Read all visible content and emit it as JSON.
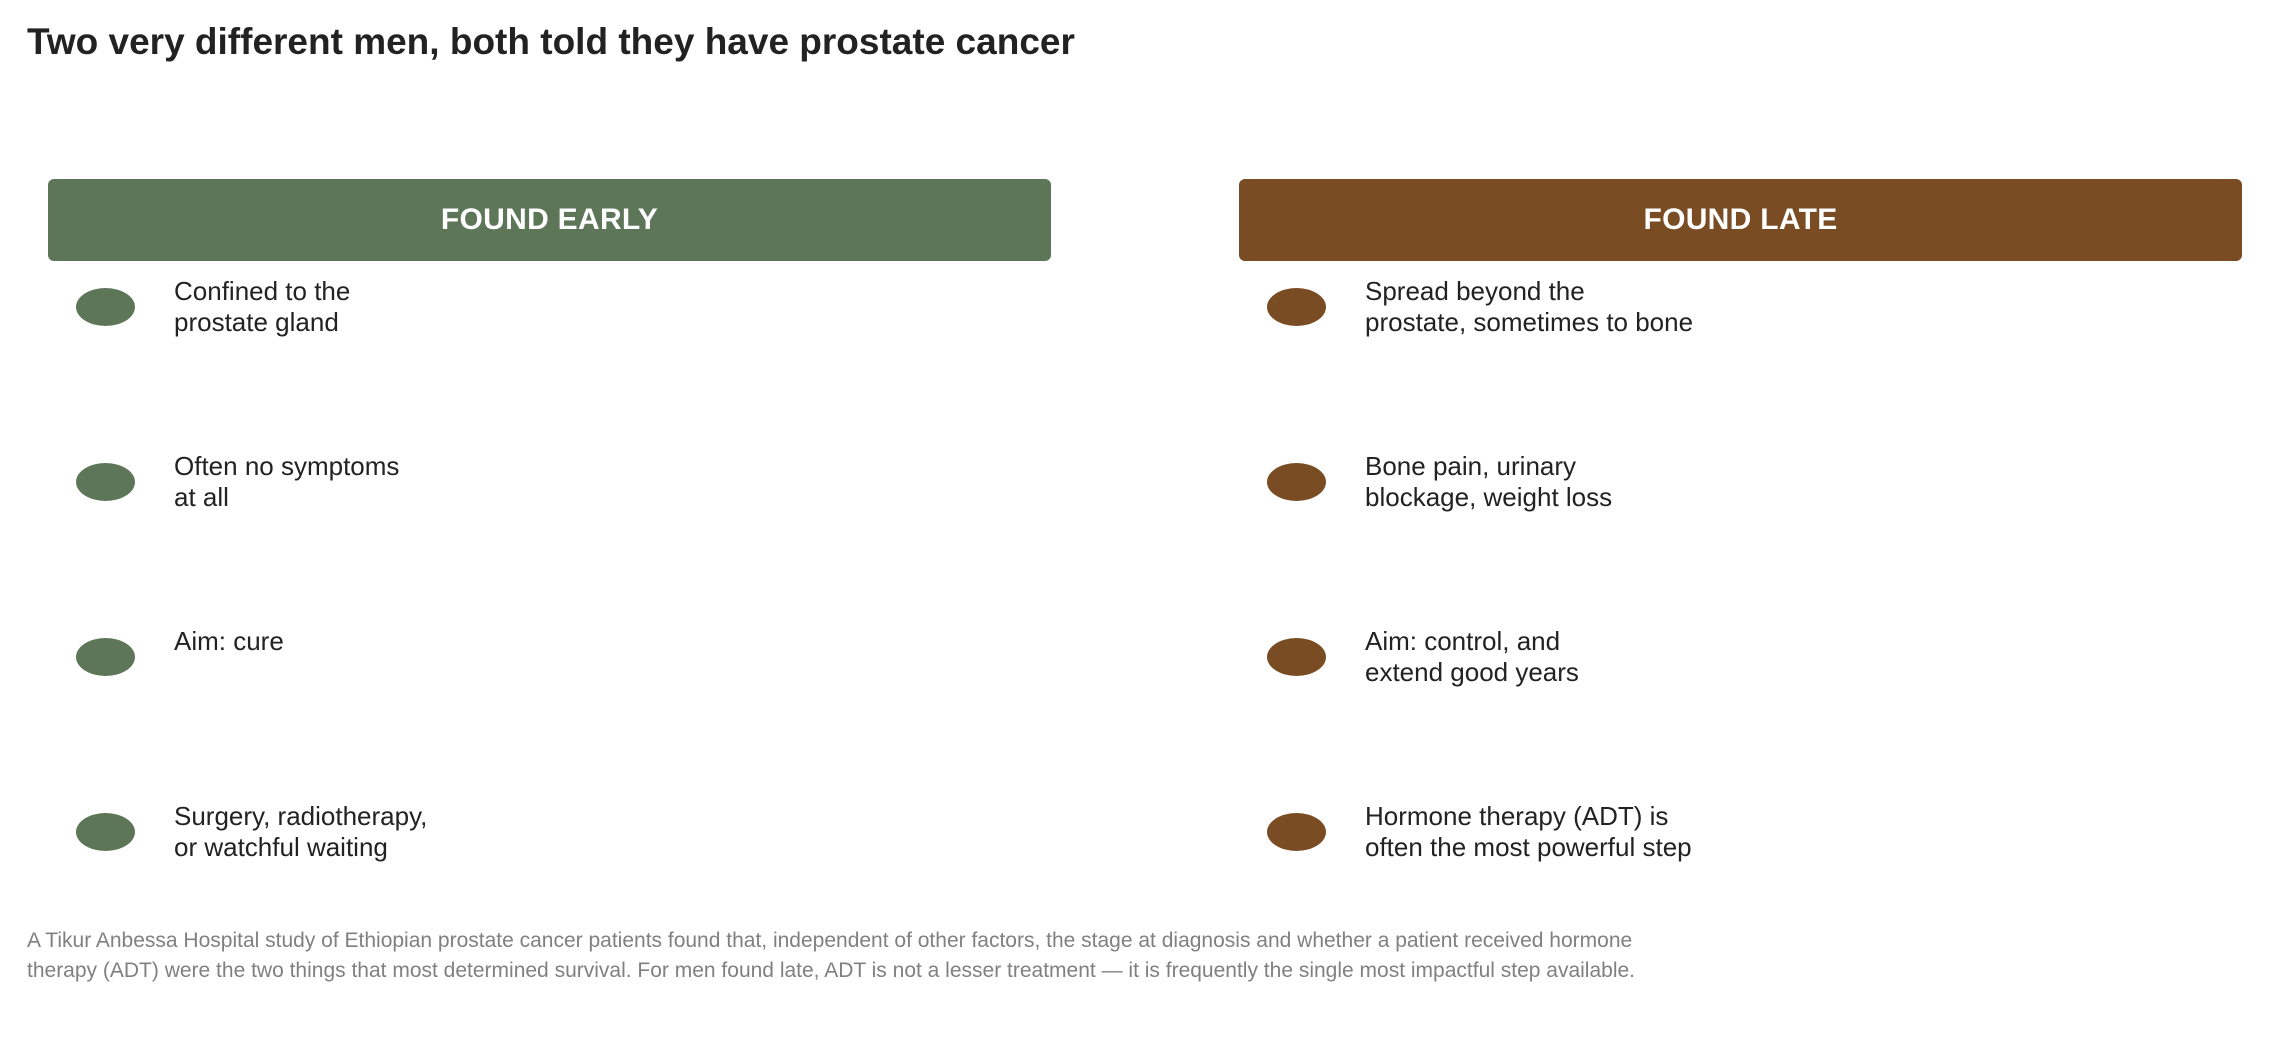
{
  "title": "Two very different men, both told they have prostate cancer",
  "colors": {
    "early": "#5d7658",
    "late": "#7a4c23",
    "footnote": "#808080"
  },
  "columns": [
    {
      "key": "early",
      "header": "FOUND EARLY",
      "items": [
        "Confined to the\nprostate gland",
        "Often no symptoms\nat all",
        "Aim: cure",
        "Surgery, radiotherapy,\nor watchful waiting"
      ]
    },
    {
      "key": "late",
      "header": "FOUND LATE",
      "items": [
        "Spread beyond the\nprostate, sometimes to bone",
        "Bone pain, urinary\nblockage, weight loss",
        "Aim: control, and\nextend good years",
        "Hormone therapy (ADT) is\noften the most powerful step"
      ]
    }
  ],
  "footnote": "A Tikur Anbessa Hospital study of Ethiopian prostate cancer patients found that, independent of other factors, the stage at diagnosis and whether a patient received hormone therapy (ADT) were the two things that most determined survival. For men found late, ADT is not a lesser treatment — it is frequently the single most impactful step available."
}
